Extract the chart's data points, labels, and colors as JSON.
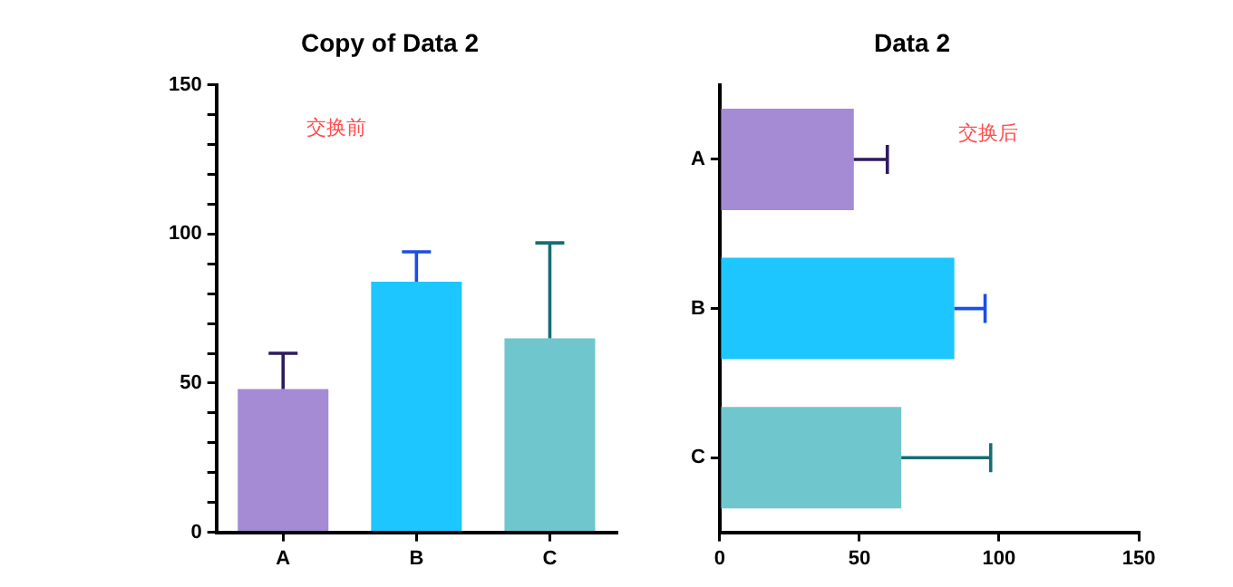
{
  "chart_data": [
    {
      "type": "bar",
      "title": "Copy of Data 2",
      "categories": [
        "A",
        "B",
        "C"
      ],
      "colors": [
        "#a48bd3",
        "#1ec6ff",
        "#70c6cd"
      ],
      "values": [
        48,
        84,
        65
      ],
      "errors": [
        [
          48,
          60
        ],
        [
          84,
          94
        ],
        [
          65,
          97
        ]
      ],
      "ylim": [
        0,
        150
      ],
      "yticks": [
        0,
        {
          "value": 10,
          "label": null
        },
        {
          "value": 20,
          "label": null
        },
        {
          "value": 30,
          "label": null
        },
        {
          "value": 40,
          "label": null
        },
        50,
        {
          "value": 60,
          "label": null
        },
        {
          "value": 70,
          "label": null
        },
        {
          "value": 80,
          "label": null
        },
        {
          "value": 90,
          "label": null
        },
        100,
        {
          "value": 110,
          "label": null
        },
        {
          "value": 120,
          "label": null
        },
        {
          "value": 130,
          "label": null
        },
        {
          "value": 140,
          "label": null
        },
        150
      ],
      "annotations": [
        "交换前"
      ],
      "grid": false,
      "legend": false
    },
    {
      "type": "bar",
      "orientation": "horizontal",
      "title": "Data 2",
      "categories": [
        "A",
        "B",
        "C"
      ],
      "colors": [
        "#a48bd3",
        "#1ec6ff",
        "#70c6cd"
      ],
      "values": [
        48,
        84,
        65
      ],
      "errors": [
        [
          48,
          60
        ],
        [
          84,
          95
        ],
        [
          65,
          97
        ]
      ],
      "xlim": [
        0,
        150
      ],
      "xticks": [
        0,
        50,
        100,
        150
      ],
      "annotations": [
        "交换后"
      ],
      "grid": false,
      "legend": false
    }
  ]
}
